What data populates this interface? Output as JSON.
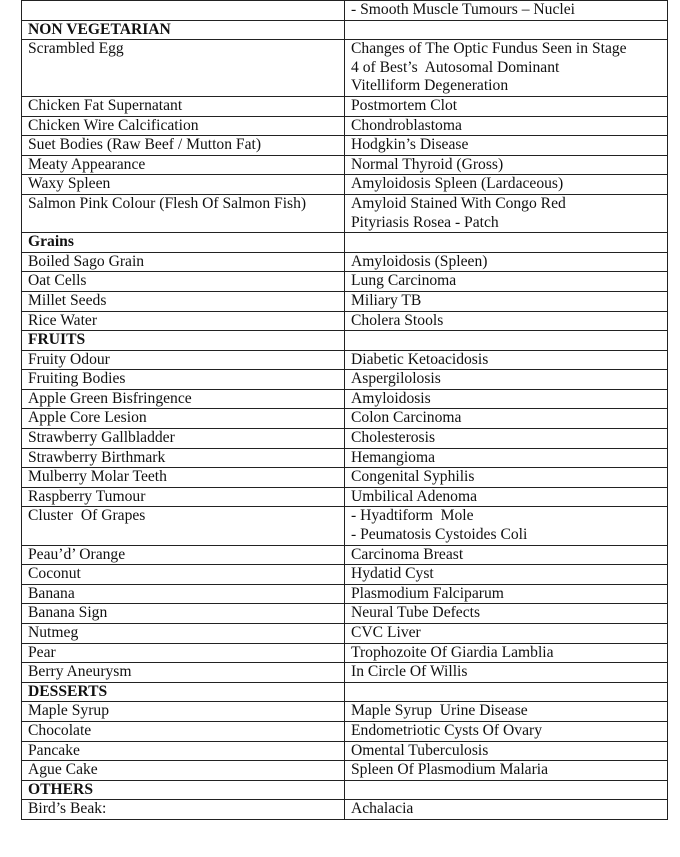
{
  "table": {
    "rows": [
      {
        "left": [
          ""
        ],
        "right": [
          "- Smooth Muscle Tumours – Nuclei"
        ]
      },
      {
        "left": [
          "NON VEGETARIAN"
        ],
        "right": [
          ""
        ],
        "heading": true
      },
      {
        "left": [
          "Scrambled Egg"
        ],
        "right": [
          "Changes of The Optic Fundus Seen in Stage",
          "4 of Best’s  Autosomal Dominant",
          "Vitelliform Degeneration"
        ]
      },
      {
        "left": [
          "Chicken Fat Supernatant"
        ],
        "right": [
          "Postmortem Clot"
        ]
      },
      {
        "left": [
          "Chicken Wire Calcification"
        ],
        "right": [
          "Chondroblastoma"
        ]
      },
      {
        "left": [
          "Suet Bodies (Raw Beef / Mutton Fat)"
        ],
        "right": [
          "Hodgkin’s Disease"
        ]
      },
      {
        "left": [
          "Meaty Appearance"
        ],
        "right": [
          "Normal Thyroid (Gross)"
        ]
      },
      {
        "left": [
          "Waxy Spleen"
        ],
        "right": [
          "Amyloidosis Spleen (Lardaceous)"
        ]
      },
      {
        "left": [
          "Salmon Pink Colour (Flesh Of Salmon Fish)"
        ],
        "right": [
          "Amyloid Stained With Congo Red",
          "Pityriasis Rosea - Patch"
        ]
      },
      {
        "left": [
          "Grains"
        ],
        "right": [
          ""
        ],
        "heading": true
      },
      {
        "left": [
          "Boiled Sago Grain"
        ],
        "right": [
          "Amyloidosis (Spleen)"
        ]
      },
      {
        "left": [
          "Oat Cells"
        ],
        "right": [
          "Lung Carcinoma"
        ]
      },
      {
        "left": [
          "Millet Seeds"
        ],
        "right": [
          "Miliary TB"
        ]
      },
      {
        "left": [
          "Rice Water"
        ],
        "right": [
          "Cholera Stools"
        ]
      },
      {
        "left": [
          "FRUITS"
        ],
        "right": [
          ""
        ],
        "heading": true
      },
      {
        "left": [
          "Fruity Odour"
        ],
        "right": [
          "Diabetic Ketoacidosis"
        ]
      },
      {
        "left": [
          "Fruiting Bodies"
        ],
        "right": [
          "Aspergilolosis"
        ]
      },
      {
        "left": [
          "Apple Green Bisfringence"
        ],
        "right": [
          "Amyloidosis"
        ]
      },
      {
        "left": [
          "Apple Core Lesion"
        ],
        "right": [
          "Colon Carcinoma"
        ]
      },
      {
        "left": [
          "Strawberry Gallbladder"
        ],
        "right": [
          "Cholesterosis"
        ]
      },
      {
        "left": [
          "Strawberry Birthmark"
        ],
        "right": [
          "Hemangioma"
        ]
      },
      {
        "left": [
          "Mulberry Molar Teeth"
        ],
        "right": [
          "Congenital Syphilis"
        ]
      },
      {
        "left": [
          "Raspberry Tumour"
        ],
        "right": [
          "Umbilical Adenoma"
        ]
      },
      {
        "left": [
          "Cluster  Of Grapes"
        ],
        "right": [
          "- Hyadtiform  Mole",
          "- Peumatosis Cystoides Coli"
        ]
      },
      {
        "left": [
          "Peau’d’ Orange"
        ],
        "right": [
          "Carcinoma Breast"
        ]
      },
      {
        "left": [
          "Coconut"
        ],
        "right": [
          "Hydatid Cyst"
        ]
      },
      {
        "left": [
          "Banana"
        ],
        "right": [
          "Plasmodium Falciparum"
        ]
      },
      {
        "left": [
          "Banana Sign"
        ],
        "right": [
          "Neural Tube Defects"
        ]
      },
      {
        "left": [
          "Nutmeg"
        ],
        "right": [
          "CVC Liver"
        ]
      },
      {
        "left": [
          "Pear"
        ],
        "right": [
          "Trophozoite Of Giardia Lamblia"
        ]
      },
      {
        "left": [
          "Berry Aneurysm"
        ],
        "right": [
          "In Circle Of Willis"
        ]
      },
      {
        "left": [
          "DESSERTS"
        ],
        "right": [
          ""
        ],
        "heading": true
      },
      {
        "left": [
          "Maple Syrup"
        ],
        "right": [
          "Maple Syrup  Urine Disease"
        ]
      },
      {
        "left": [
          "Chocolate"
        ],
        "right": [
          "Endometriotic Cysts Of Ovary"
        ]
      },
      {
        "left": [
          "Pancake"
        ],
        "right": [
          "Omental Tuberculosis"
        ]
      },
      {
        "left": [
          "Ague Cake"
        ],
        "right": [
          "Spleen Of Plasmodium Malaria"
        ]
      },
      {
        "left": [
          "OTHERS"
        ],
        "right": [
          ""
        ],
        "heading": true
      },
      {
        "left": [
          "Bird’s Beak:"
        ],
        "right": [
          "Achalacia"
        ]
      }
    ]
  }
}
